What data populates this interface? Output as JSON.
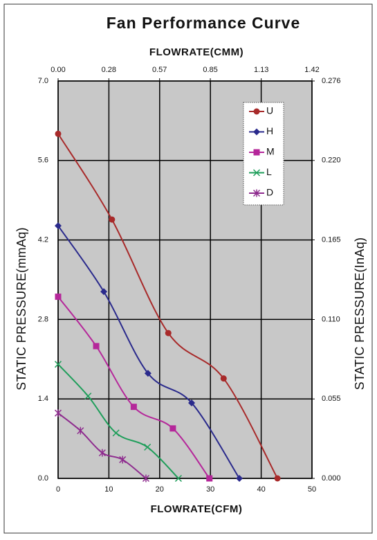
{
  "chart_data": {
    "type": "line",
    "title": "Fan Performance Curve",
    "xlabel": "FLOWRATE(CFM)",
    "x2label": "FLOWRATE(CMM)",
    "ylabel": "STATIC PRESSURE(mmAq)",
    "y2label": "STATIC PRESSURE(InAq)",
    "xlim": [
      0,
      50
    ],
    "xticks": [
      0,
      10,
      20,
      30,
      40,
      50
    ],
    "x2lim": [
      0,
      1.416
    ],
    "x2ticks": [
      {
        "value": 0,
        "label": "0.00"
      },
      {
        "value": 0.283,
        "label": "0.28"
      },
      {
        "value": 0.566,
        "label": "0.57"
      },
      {
        "value": 0.849,
        "label": "0.85"
      },
      {
        "value": 1.133,
        "label": "1.13"
      },
      {
        "value": 1.416,
        "label": "1.42"
      }
    ],
    "ylim": [
      0,
      7
    ],
    "yticks": [
      {
        "value": 0,
        "label": "0.0"
      },
      {
        "value": 1.4,
        "label": "1.4"
      },
      {
        "value": 2.8,
        "label": "2.8"
      },
      {
        "value": 4.2,
        "label": "4.2"
      },
      {
        "value": 5.6,
        "label": "5.6"
      },
      {
        "value": 7,
        "label": "7.0"
      }
    ],
    "y2lim": [
      0,
      0.2756
    ],
    "y2ticks": [
      {
        "value": 0,
        "label": "0.000"
      },
      {
        "value": 0.0551,
        "label": "0.055"
      },
      {
        "value": 0.1102,
        "label": "0.110"
      },
      {
        "value": 0.1654,
        "label": "0.165"
      },
      {
        "value": 0.2205,
        "label": "0.220"
      },
      {
        "value": 0.2756,
        "label": "0.276"
      }
    ],
    "grid": true,
    "background": "#c8c8c8",
    "smooth": true,
    "legend": "upper right",
    "series": [
      {
        "name": "U",
        "color": "#a82a2a",
        "marker": "circle",
        "x": [
          0,
          10.6,
          21.7,
          32.6,
          43.2
        ],
        "values": [
          6.07,
          4.56,
          2.56,
          1.76,
          0
        ]
      },
      {
        "name": "H",
        "color": "#2a2a8c",
        "marker": "diamond",
        "x": [
          0,
          9.0,
          17.7,
          26.3,
          35.7
        ],
        "values": [
          4.45,
          3.29,
          1.85,
          1.33,
          0
        ]
      },
      {
        "name": "M",
        "color": "#b5279a",
        "marker": "square",
        "x": [
          0,
          7.5,
          14.9,
          22.6,
          29.8
        ],
        "values": [
          3.2,
          2.33,
          1.26,
          0.88,
          0
        ]
      },
      {
        "name": "L",
        "color": "#1e9e5a",
        "marker": "x",
        "x": [
          0,
          5.9,
          11.4,
          17.6,
          23.7
        ],
        "values": [
          2.01,
          1.45,
          0.8,
          0.55,
          0
        ]
      },
      {
        "name": "D",
        "color": "#8e2b8e",
        "marker": "asterisk",
        "x": [
          0,
          4.4,
          8.7,
          12.7,
          17.3
        ],
        "values": [
          1.15,
          0.84,
          0.45,
          0.33,
          0
        ]
      }
    ]
  }
}
